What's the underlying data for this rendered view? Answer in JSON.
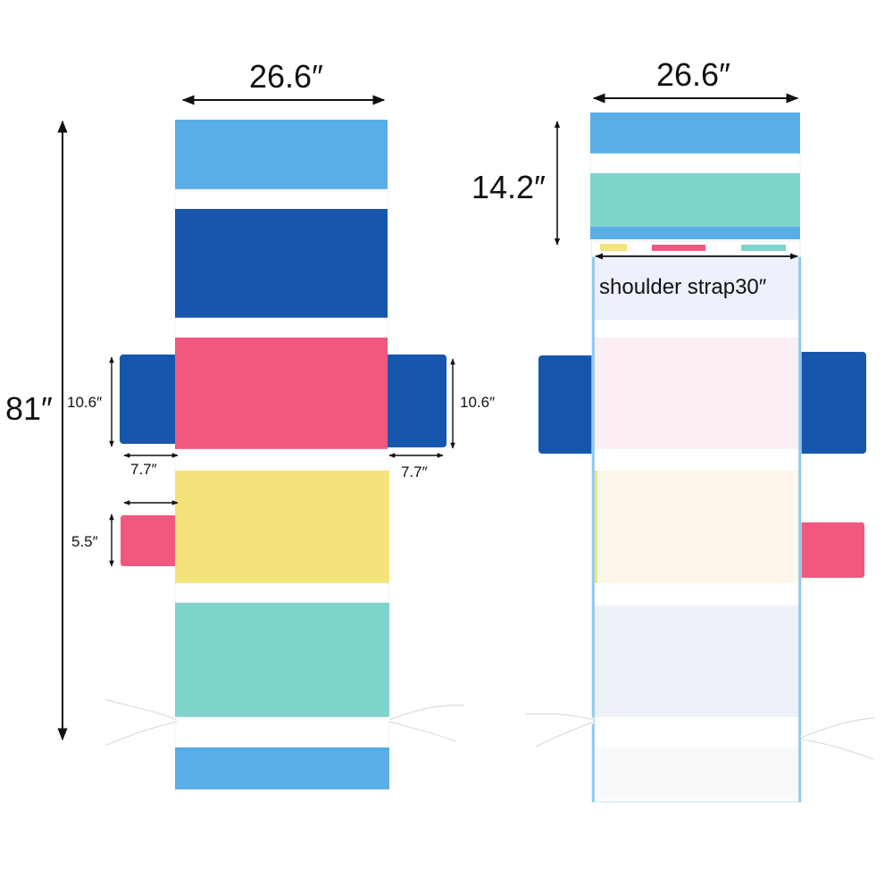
{
  "colors": {
    "light_blue": "#5aaee6",
    "royal_blue": "#1657ad",
    "pink": "#f2587f",
    "yellow": "#f3e37a",
    "turquoise": "#7fd4cc",
    "white": "#ffffff",
    "arrow": "#111111"
  },
  "left_cover": {
    "width_label": "26.6″",
    "length_label": "81″",
    "side_pocket_height_left": "10.6″",
    "side_pocket_height_right": "10.6″",
    "side_pocket_width_left": "7.7″",
    "side_pocket_width_right": "7.7″",
    "small_pocket_height": "5.5″"
  },
  "right_cover": {
    "width_label": "26.6″",
    "hood_height_label": "14.2″",
    "strap_label": "shoulder strap30″"
  }
}
